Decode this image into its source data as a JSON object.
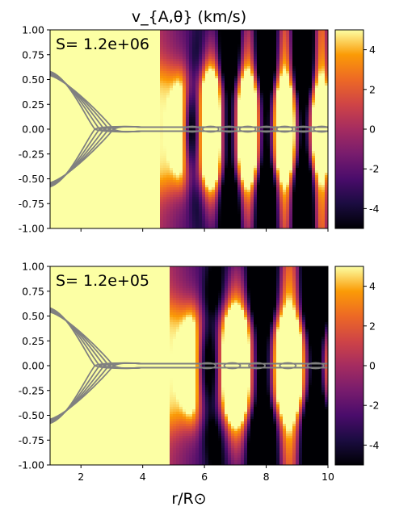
{
  "figure": {
    "title": "v_{A,θ} (km/s)",
    "xlabel": "r/R⊙"
  },
  "chart_data": [
    {
      "type": "heatmap",
      "annotation": "S= 1.2e+06",
      "title": "v_{A,θ} (km/s)",
      "xlim": [
        1,
        10
      ],
      "ylim": [
        -1.0,
        1.0
      ],
      "xticks": [
        "2",
        "4",
        "6",
        "8",
        "10"
      ],
      "yticks": [
        "1.00",
        "0.75",
        "0.50",
        "0.25",
        "0.00",
        "-0.25",
        "-0.50",
        "-0.75",
        "-1.00"
      ],
      "show_x_ticklabels": false,
      "colormap": "inferno",
      "colorbar": {
        "range": [
          -5,
          5
        ],
        "ticks": [
          "4",
          "2",
          "0",
          "-2",
          "-4"
        ]
      },
      "wave_peaks_x": [
        5.0,
        5.6,
        6.2,
        6.8,
        7.4,
        8.0,
        8.6,
        9.2,
        9.8
      ],
      "wave_amplitude": 0.9,
      "field_lines": {
        "color": "#808080",
        "y_at_left": [
          0.58,
          0.57,
          0.56,
          0.55,
          0.54
        ],
        "cusp_x": [
          2.45,
          2.6,
          2.75,
          2.9,
          3.05
        ],
        "current_sheet_from_x": 4.0
      }
    },
    {
      "type": "heatmap",
      "annotation": "S= 1.2e+05",
      "xlim": [
        1,
        10
      ],
      "ylim": [
        -1.0,
        1.0
      ],
      "xticks": [
        "2",
        "4",
        "6",
        "8",
        "10"
      ],
      "yticks": [
        "1.00",
        "0.75",
        "0.50",
        "0.25",
        "0.00",
        "-0.25",
        "-0.50",
        "-0.75",
        "-1.00"
      ],
      "show_x_ticklabels": true,
      "xlabel": "r/R⊙",
      "colormap": "inferno",
      "colorbar": {
        "range": [
          -5,
          5
        ],
        "ticks": [
          "4",
          "2",
          "0",
          "-2",
          "-4"
        ]
      },
      "wave_peaks_x": [
        5.3,
        6.1,
        6.9,
        7.7,
        8.7,
        9.6
      ],
      "wave_amplitude": 1.0,
      "field_lines": {
        "color": "#808080",
        "y_at_left": [
          0.58,
          0.57,
          0.56,
          0.55,
          0.54
        ],
        "cusp_x": [
          2.45,
          2.6,
          2.75,
          2.9,
          3.05
        ],
        "current_sheet_from_x": 4.0
      }
    }
  ]
}
